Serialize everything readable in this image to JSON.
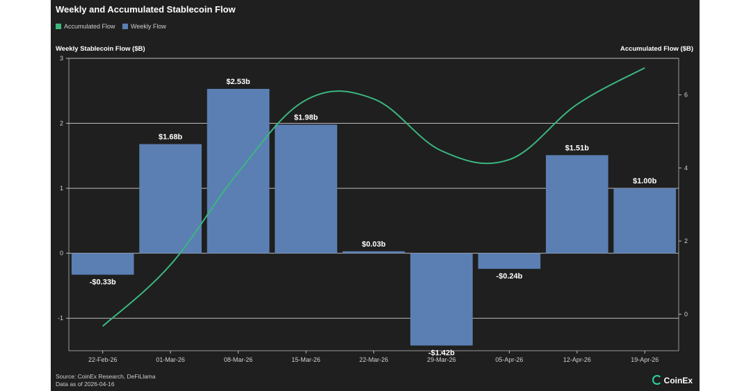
{
  "title": "Weekly and Accumulated Stablecoin Flow",
  "legend": [
    {
      "label": "Accumulated Flow",
      "color": "#3bb77e"
    },
    {
      "label": "Weekly Flow",
      "color": "#5b7fb3"
    }
  ],
  "ylabel_left": "Weekly Stablecoin Flow ($B)",
  "ylabel_right": "Accumulated Flow ($B)",
  "footer": {
    "source": "Source: CoinEx Research, DeFiLlama",
    "date": "Data as of 2026-04-16"
  },
  "brand": "CoinEx",
  "chart_data": {
    "type": "bar",
    "categories": [
      "22-Feb-26",
      "01-Mar-26",
      "08-Mar-26",
      "15-Mar-26",
      "22-Mar-26",
      "29-Mar-26",
      "05-Apr-26",
      "12-Apr-26",
      "19-Apr-26"
    ],
    "series": [
      {
        "name": "Weekly Flow",
        "type": "bar",
        "axis": "left",
        "color": "#5b7fb3",
        "values": [
          -0.33,
          1.68,
          2.53,
          1.98,
          0.03,
          -1.42,
          -0.24,
          1.51,
          1.0
        ],
        "labels": [
          "-$0.33b",
          "$1.68b",
          "$2.53b",
          "$1.98b",
          "$0.03b",
          "-$1.42b",
          "-$0.24b",
          "$1.51b",
          "$1.00b"
        ]
      },
      {
        "name": "Accumulated Flow",
        "type": "line",
        "axis": "right",
        "color": "#3bb77e",
        "values": [
          -0.33,
          1.35,
          3.88,
          5.86,
          5.89,
          4.47,
          4.23,
          5.74,
          6.74
        ]
      }
    ],
    "ylim_left": [
      -1.5,
      3
    ],
    "yticks_left": [
      -1,
      0,
      1,
      2,
      3
    ],
    "ylim_right": [
      -1,
      7
    ],
    "yticks_right": [
      0,
      2,
      4,
      6
    ],
    "grid": "horizontal",
    "legend_position": "top-left"
  }
}
